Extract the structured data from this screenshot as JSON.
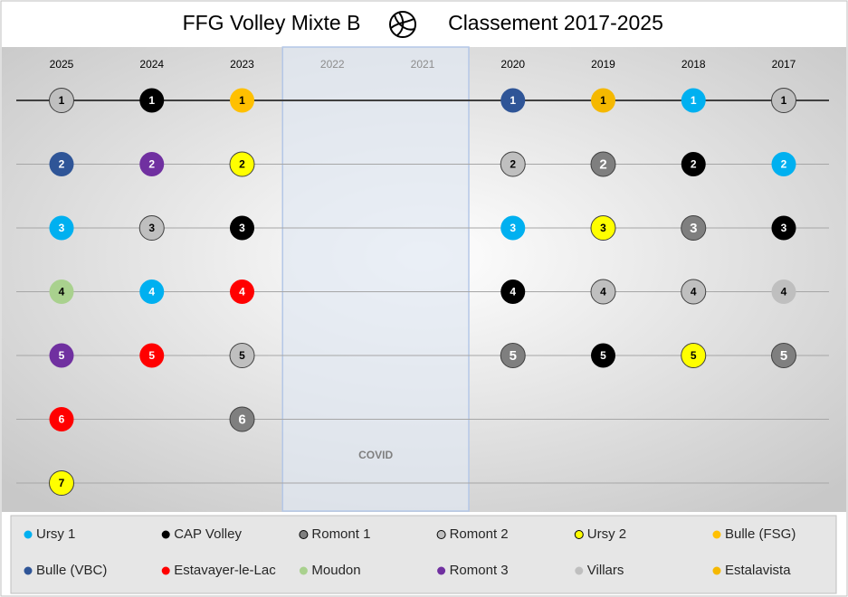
{
  "chart_data": {
    "type": "rank",
    "title": "FFG Volley Mixte B",
    "subtitle": "Classement 2017-2025",
    "annotation": "COVID",
    "categories": [
      "2025",
      "2024",
      "2023",
      "2022",
      "2021",
      "2020",
      "2019",
      "2018",
      "2017"
    ],
    "ylim": [
      1,
      7
    ],
    "yticks": [
      1,
      2,
      3,
      4,
      5,
      6,
      7
    ],
    "grid": true,
    "series": [
      {
        "name": "Ursy 1",
        "color": "#00b0f0",
        "outline": false,
        "values": [
          3,
          4,
          null,
          null,
          null,
          3,
          null,
          1,
          2
        ]
      },
      {
        "name": "CAP Volley",
        "color": "#000000",
        "outline": false,
        "values": [
          null,
          1,
          3,
          null,
          null,
          4,
          5,
          2,
          3
        ]
      },
      {
        "name": "Romont 1",
        "color": "#7f7f7f",
        "outline": true,
        "values": [
          null,
          null,
          6,
          null,
          null,
          5,
          2,
          3,
          5
        ]
      },
      {
        "name": "Romont 2",
        "color": "#bfbfbf",
        "outline": true,
        "values": [
          1,
          3,
          5,
          null,
          null,
          2,
          4,
          4,
          1
        ]
      },
      {
        "name": "Ursy 2",
        "color": "#ffff00",
        "outline": true,
        "values": [
          7,
          null,
          2,
          null,
          null,
          null,
          3,
          5,
          null
        ]
      },
      {
        "name": "Bulle (FSG)",
        "color": "#ffc000",
        "outline": false,
        "values": [
          null,
          null,
          1,
          null,
          null,
          null,
          null,
          null,
          null
        ]
      },
      {
        "name": "Bulle (VBC)",
        "color": "#2f5597",
        "outline": false,
        "values": [
          2,
          null,
          null,
          null,
          null,
          1,
          null,
          null,
          null
        ]
      },
      {
        "name": "Estavayer-le-Lac",
        "color": "#ff0000",
        "outline": false,
        "values": [
          6,
          5,
          4,
          null,
          null,
          null,
          null,
          null,
          null
        ]
      },
      {
        "name": "Moudon",
        "color": "#a9d18e",
        "outline": false,
        "values": [
          4,
          null,
          null,
          null,
          null,
          null,
          null,
          null,
          null
        ]
      },
      {
        "name": "Romont 3",
        "color": "#7030a0",
        "outline": false,
        "values": [
          5,
          2,
          null,
          null,
          null,
          null,
          null,
          null,
          null
        ]
      },
      {
        "name": "Villars",
        "color": "#bfbfbf",
        "outline": false,
        "values": [
          null,
          null,
          null,
          null,
          null,
          null,
          null,
          null,
          4
        ]
      },
      {
        "name": "Estalavista",
        "color": "#f5b800",
        "outline": false,
        "values": [
          null,
          null,
          null,
          null,
          null,
          null,
          1,
          null,
          null
        ]
      }
    ]
  }
}
